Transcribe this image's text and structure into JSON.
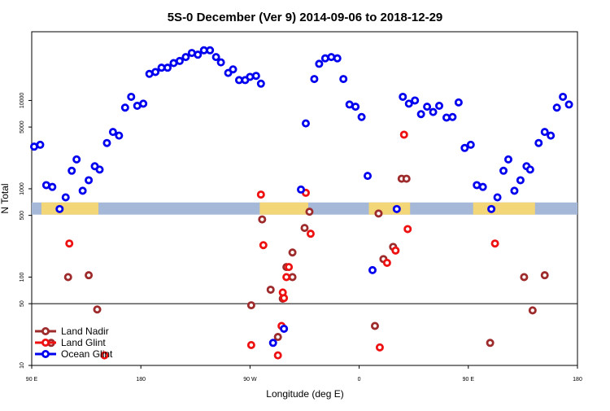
{
  "chart_data": {
    "type": "scatter",
    "title": "5S-0 December (Ver 9)   2014-09-06 to 2018-12-29",
    "xlabel": "Longitude (deg E)",
    "ylabel": "N Total",
    "x_ticks": [
      {
        "value": 0,
        "label": "90 E"
      },
      {
        "value": 90,
        "label": "180"
      },
      {
        "value": 180,
        "label": "90 W"
      },
      {
        "value": 270,
        "label": "0"
      },
      {
        "value": 360,
        "label": "90 E"
      },
      {
        "value": 450,
        "label": "180"
      }
    ],
    "y_ticks": [
      {
        "value": 10,
        "label": "10"
      },
      {
        "value": 50,
        "label": "50"
      },
      {
        "value": 100,
        "label": "100"
      },
      {
        "value": 500,
        "label": "500"
      },
      {
        "value": 1000,
        "label": "1000"
      },
      {
        "value": 5000,
        "label": "5000"
      },
      {
        "value": 10000,
        "label": "10000"
      }
    ],
    "xlim": [
      0,
      450
    ],
    "ylim": [
      10,
      60000
    ],
    "y_scale": "log",
    "reference_line_y": 50,
    "legend_position": "bottom-left",
    "series": [
      {
        "name": "Land Nadir",
        "color": "#9e2b2b",
        "points": [
          [
            30,
            100
          ],
          [
            47,
            105
          ],
          [
            54,
            43
          ],
          [
            181,
            48
          ],
          [
            203,
            21
          ],
          [
            190,
            450
          ],
          [
            215,
            190
          ],
          [
            210,
            130
          ],
          [
            215,
            100
          ],
          [
            197,
            72
          ],
          [
            207,
            57
          ],
          [
            225,
            360
          ],
          [
            229,
            550
          ],
          [
            286,
            525
          ],
          [
            305,
            1300
          ],
          [
            309,
            1300
          ],
          [
            298,
            220
          ],
          [
            290,
            160
          ],
          [
            283,
            28
          ],
          [
            406,
            100
          ],
          [
            423,
            105
          ],
          [
            413,
            42
          ],
          [
            16,
            18
          ],
          [
            378,
            18
          ]
        ]
      },
      {
        "name": "Land Glint",
        "color": "#ee1111",
        "points": [
          [
            31,
            240
          ],
          [
            60,
            13
          ],
          [
            189,
            860
          ],
          [
            191,
            230
          ],
          [
            181,
            17
          ],
          [
            206,
            28
          ],
          [
            212,
            130
          ],
          [
            210,
            100
          ],
          [
            208,
            58
          ],
          [
            207,
            67
          ],
          [
            226,
            900
          ],
          [
            230,
            310
          ],
          [
            293,
            145
          ],
          [
            300,
            200
          ],
          [
            307,
            4100
          ],
          [
            310,
            350
          ],
          [
            382,
            240
          ],
          [
            203,
            13
          ],
          [
            287,
            16
          ]
        ]
      },
      {
        "name": "Ocean Glint",
        "color": "#0000ee",
        "points": [
          [
            2,
            3000
          ],
          [
            7,
            3150
          ],
          [
            12,
            1100
          ],
          [
            17,
            1050
          ],
          [
            23,
            590
          ],
          [
            28,
            800
          ],
          [
            33,
            1600
          ],
          [
            37,
            2150
          ],
          [
            42,
            950
          ],
          [
            47,
            1250
          ],
          [
            52,
            1800
          ],
          [
            56,
            1650
          ],
          [
            62,
            3300
          ],
          [
            67,
            4400
          ],
          [
            72,
            4000
          ],
          [
            77,
            8300
          ],
          [
            82,
            11000
          ],
          [
            87,
            8700
          ],
          [
            92,
            9200
          ],
          [
            97,
            20000
          ],
          [
            102,
            21000
          ],
          [
            107,
            23500
          ],
          [
            112,
            23500
          ],
          [
            117,
            26500
          ],
          [
            122,
            28000
          ],
          [
            127,
            31000
          ],
          [
            132,
            34500
          ],
          [
            137,
            33000
          ],
          [
            142,
            37000
          ],
          [
            147,
            37000
          ],
          [
            152,
            31000
          ],
          [
            156,
            27000
          ],
          [
            162,
            20500
          ],
          [
            166,
            22500
          ],
          [
            171,
            17000
          ],
          [
            176,
            17000
          ],
          [
            180,
            18500
          ],
          [
            185,
            19000
          ],
          [
            189,
            15500
          ],
          [
            222,
            980
          ],
          [
            226,
            5500
          ],
          [
            233,
            17500
          ],
          [
            237,
            26000
          ],
          [
            242,
            30000
          ],
          [
            247,
            31000
          ],
          [
            252,
            30000
          ],
          [
            257,
            17500
          ],
          [
            262,
            9000
          ],
          [
            267,
            8500
          ],
          [
            272,
            6500
          ],
          [
            277,
            1400
          ],
          [
            281,
            120
          ],
          [
            301,
            590
          ],
          [
            306,
            11000
          ],
          [
            311,
            9200
          ],
          [
            316,
            10000
          ],
          [
            321,
            7000
          ],
          [
            326,
            8500
          ],
          [
            331,
            7400
          ],
          [
            336,
            8700
          ],
          [
            342,
            6400
          ],
          [
            347,
            6500
          ],
          [
            352,
            9500
          ],
          [
            357,
            2900
          ],
          [
            362,
            3150
          ],
          [
            367,
            1100
          ],
          [
            372,
            1050
          ],
          [
            379,
            590
          ],
          [
            384,
            800
          ],
          [
            389,
            1600
          ],
          [
            393,
            2150
          ],
          [
            398,
            950
          ],
          [
            403,
            1250
          ],
          [
            408,
            1800
          ],
          [
            411,
            1650
          ],
          [
            418,
            3300
          ],
          [
            423,
            4400
          ],
          [
            428,
            4000
          ],
          [
            433,
            8300
          ],
          [
            438,
            11000
          ],
          [
            443,
            9000
          ],
          [
            208,
            26
          ],
          [
            199,
            18
          ]
        ]
      }
    ]
  }
}
